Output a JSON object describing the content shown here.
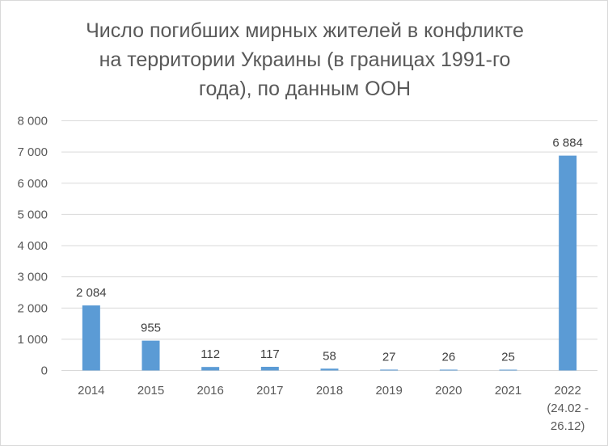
{
  "chart_data": {
    "type": "bar",
    "title": "Число погибших мирных жителей в конфликте\nна территории Украины (в границах 1991-го\nгода), по данным ООН",
    "categories": [
      [
        "2014"
      ],
      [
        "2015"
      ],
      [
        "2016"
      ],
      [
        "2017"
      ],
      [
        "2018"
      ],
      [
        "2019"
      ],
      [
        "2020"
      ],
      [
        "2021"
      ],
      [
        "2022",
        "(24.02 -",
        "26.12)"
      ]
    ],
    "values": [
      2084,
      955,
      112,
      117,
      58,
      27,
      26,
      25,
      6884
    ],
    "data_labels": [
      "2 084",
      "955",
      "112",
      "117",
      "58",
      "27",
      "26",
      "25",
      "6 884"
    ],
    "xlabel": "",
    "ylabel": "",
    "ylim": [
      0,
      8000
    ],
    "yticks": [
      0,
      1000,
      2000,
      3000,
      4000,
      5000,
      6000,
      7000,
      8000
    ],
    "ytick_labels": [
      "0",
      "1 000",
      "2 000",
      "3 000",
      "4 000",
      "5 000",
      "6 000",
      "7 000",
      "8 000"
    ],
    "grid": true,
    "legend": "none",
    "bar_color": "#5b9bd5",
    "grid_color": "#d9d9d9"
  }
}
